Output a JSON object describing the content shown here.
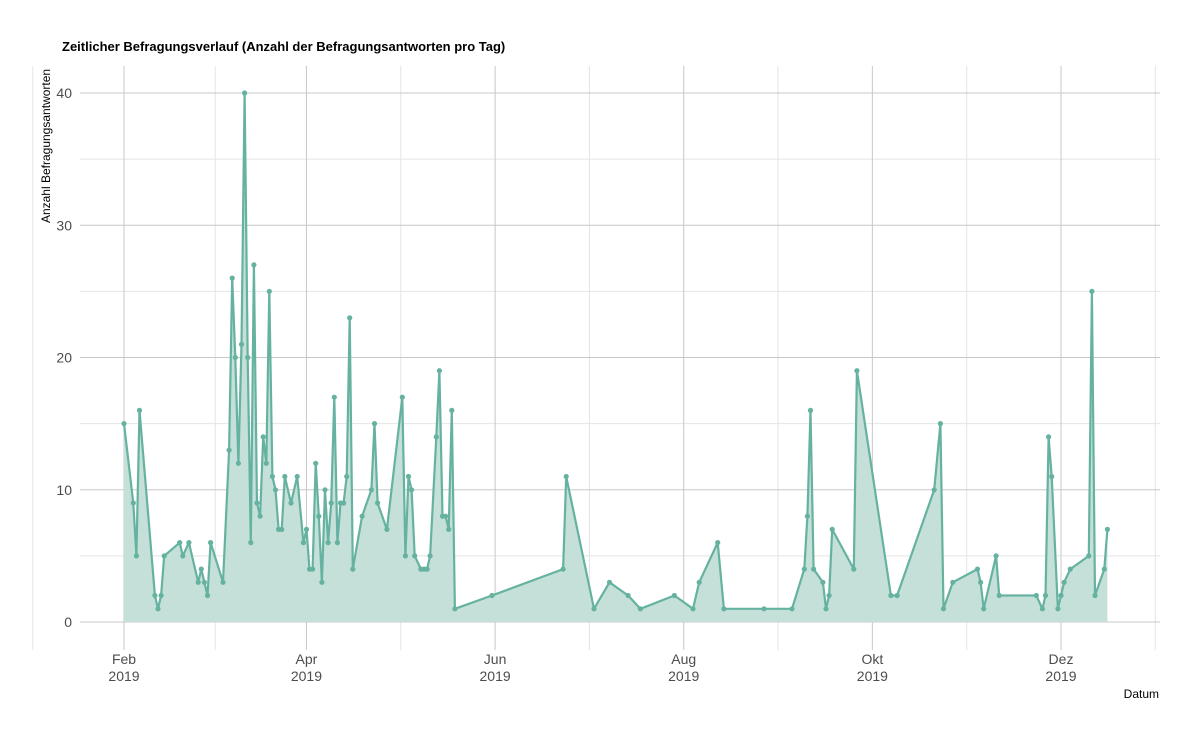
{
  "chart_data": {
    "type": "area",
    "title": "Zeitlicher Befragungsverlauf (Anzahl der Befragungsantworten pro Tag)",
    "xlabel": "Datum",
    "ylabel": "Anzahl Befragungsantworten",
    "ylim": [
      0,
      40
    ],
    "y_ticks": [
      "0",
      "10",
      "20",
      "30",
      "40"
    ],
    "x_ticks": [
      {
        "date": "2019-02-01",
        "label": "Feb",
        "year": "2019"
      },
      {
        "date": "2019-04-01",
        "label": "Apr",
        "year": "2019"
      },
      {
        "date": "2019-06-01",
        "label": "Jun",
        "year": "2019"
      },
      {
        "date": "2019-08-01",
        "label": "Aug",
        "year": "2019"
      },
      {
        "date": "2019-10-01",
        "label": "Okt",
        "year": "2019"
      },
      {
        "date": "2019-12-01",
        "label": "Dez",
        "year": "2019"
      }
    ],
    "grid": true,
    "colors": {
      "line": "#66b2a0",
      "fill": "#c5e0d9"
    },
    "points": [
      [
        "2019-02-01",
        15
      ],
      [
        "2019-02-04",
        9
      ],
      [
        "2019-02-05",
        5
      ],
      [
        "2019-02-06",
        16
      ],
      [
        "2019-02-11",
        2
      ],
      [
        "2019-02-12",
        1
      ],
      [
        "2019-02-13",
        2
      ],
      [
        "2019-02-14",
        5
      ],
      [
        "2019-02-19",
        6
      ],
      [
        "2019-02-20",
        5
      ],
      [
        "2019-02-22",
        6
      ],
      [
        "2019-02-25",
        3
      ],
      [
        "2019-02-26",
        4
      ],
      [
        "2019-02-27",
        3
      ],
      [
        "2019-02-28",
        2
      ],
      [
        "2019-03-01",
        6
      ],
      [
        "2019-03-05",
        3
      ],
      [
        "2019-03-07",
        13
      ],
      [
        "2019-03-08",
        26
      ],
      [
        "2019-03-09",
        20
      ],
      [
        "2019-03-10",
        12
      ],
      [
        "2019-03-11",
        21
      ],
      [
        "2019-03-12",
        40
      ],
      [
        "2019-03-13",
        20
      ],
      [
        "2019-03-14",
        6
      ],
      [
        "2019-03-15",
        27
      ],
      [
        "2019-03-16",
        9
      ],
      [
        "2019-03-17",
        8
      ],
      [
        "2019-03-18",
        14
      ],
      [
        "2019-03-19",
        12
      ],
      [
        "2019-03-20",
        25
      ],
      [
        "2019-03-21",
        11
      ],
      [
        "2019-03-22",
        10
      ],
      [
        "2019-03-23",
        7
      ],
      [
        "2019-03-24",
        7
      ],
      [
        "2019-03-25",
        11
      ],
      [
        "2019-03-27",
        9
      ],
      [
        "2019-03-29",
        11
      ],
      [
        "2019-03-31",
        6
      ],
      [
        "2019-04-01",
        7
      ],
      [
        "2019-04-02",
        4
      ],
      [
        "2019-04-03",
        4
      ],
      [
        "2019-04-04",
        12
      ],
      [
        "2019-04-05",
        8
      ],
      [
        "2019-04-06",
        3
      ],
      [
        "2019-04-07",
        10
      ],
      [
        "2019-04-08",
        6
      ],
      [
        "2019-04-09",
        9
      ],
      [
        "2019-04-10",
        17
      ],
      [
        "2019-04-11",
        6
      ],
      [
        "2019-04-12",
        9
      ],
      [
        "2019-04-13",
        9
      ],
      [
        "2019-04-14",
        11
      ],
      [
        "2019-04-15",
        23
      ],
      [
        "2019-04-16",
        4
      ],
      [
        "2019-04-19",
        8
      ],
      [
        "2019-04-22",
        10
      ],
      [
        "2019-04-23",
        15
      ],
      [
        "2019-04-24",
        9
      ],
      [
        "2019-04-27",
        7
      ],
      [
        "2019-05-02",
        17
      ],
      [
        "2019-05-03",
        5
      ],
      [
        "2019-05-04",
        11
      ],
      [
        "2019-05-05",
        10
      ],
      [
        "2019-05-06",
        5
      ],
      [
        "2019-05-08",
        4
      ],
      [
        "2019-05-09",
        4
      ],
      [
        "2019-05-10",
        4
      ],
      [
        "2019-05-11",
        5
      ],
      [
        "2019-05-13",
        14
      ],
      [
        "2019-05-14",
        19
      ],
      [
        "2019-05-15",
        8
      ],
      [
        "2019-05-16",
        8
      ],
      [
        "2019-05-17",
        7
      ],
      [
        "2019-05-18",
        16
      ],
      [
        "2019-05-19",
        1
      ],
      [
        "2019-05-31",
        2
      ],
      [
        "2019-06-23",
        4
      ],
      [
        "2019-06-24",
        11
      ],
      [
        "2019-07-03",
        1
      ],
      [
        "2019-07-08",
        3
      ],
      [
        "2019-07-14",
        2
      ],
      [
        "2019-07-18",
        1
      ],
      [
        "2019-07-29",
        2
      ],
      [
        "2019-08-04",
        1
      ],
      [
        "2019-08-06",
        3
      ],
      [
        "2019-08-12",
        6
      ],
      [
        "2019-08-14",
        1
      ],
      [
        "2019-08-27",
        1
      ],
      [
        "2019-09-05",
        1
      ],
      [
        "2019-09-09",
        4
      ],
      [
        "2019-09-10",
        8
      ],
      [
        "2019-09-11",
        16
      ],
      [
        "2019-09-12",
        4
      ],
      [
        "2019-09-15",
        3
      ],
      [
        "2019-09-16",
        1
      ],
      [
        "2019-09-17",
        2
      ],
      [
        "2019-09-18",
        7
      ],
      [
        "2019-09-25",
        4
      ],
      [
        "2019-09-26",
        19
      ],
      [
        "2019-10-07",
        2
      ],
      [
        "2019-10-09",
        2
      ],
      [
        "2019-10-21",
        10
      ],
      [
        "2019-10-23",
        15
      ],
      [
        "2019-10-24",
        1
      ],
      [
        "2019-10-27",
        3
      ],
      [
        "2019-11-04",
        4
      ],
      [
        "2019-11-05",
        3
      ],
      [
        "2019-11-06",
        1
      ],
      [
        "2019-11-10",
        5
      ],
      [
        "2019-11-11",
        2
      ],
      [
        "2019-11-23",
        2
      ],
      [
        "2019-11-25",
        1
      ],
      [
        "2019-11-26",
        2
      ],
      [
        "2019-11-27",
        14
      ],
      [
        "2019-11-28",
        11
      ],
      [
        "2019-11-30",
        1
      ],
      [
        "2019-12-01",
        2
      ],
      [
        "2019-12-02",
        3
      ],
      [
        "2019-12-04",
        4
      ],
      [
        "2019-12-10",
        5
      ],
      [
        "2019-12-11",
        25
      ],
      [
        "2019-12-12",
        2
      ],
      [
        "2019-12-15",
        4
      ],
      [
        "2019-12-16",
        7
      ]
    ]
  }
}
